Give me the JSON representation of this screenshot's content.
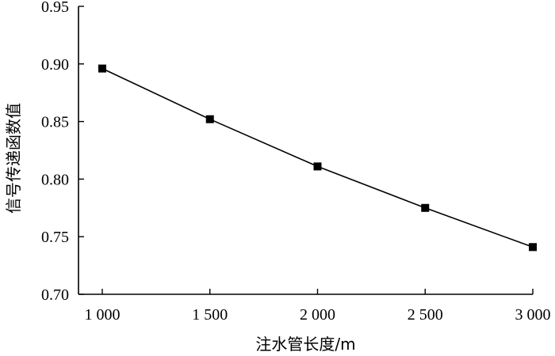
{
  "chart_data": {
    "type": "line",
    "title": "",
    "xlabel": "注水管长度/m",
    "ylabel": "信号传递函数值",
    "x": [
      1000,
      1500,
      2000,
      2500,
      3000
    ],
    "xticks": [
      "1 000",
      "1 500",
      "2 000",
      "2 500",
      "3 000"
    ],
    "xlim": [
      1000,
      3000
    ],
    "ylim": [
      0.7,
      0.95
    ],
    "yticks": [
      "0.70",
      "0.75",
      "0.80",
      "0.85",
      "0.90",
      "0.95"
    ],
    "series": [
      {
        "values": [
          0.896,
          0.852,
          0.811,
          0.775,
          0.741
        ],
        "marker": "square",
        "color": "#000000"
      }
    ],
    "grid": false,
    "legend": "none"
  }
}
